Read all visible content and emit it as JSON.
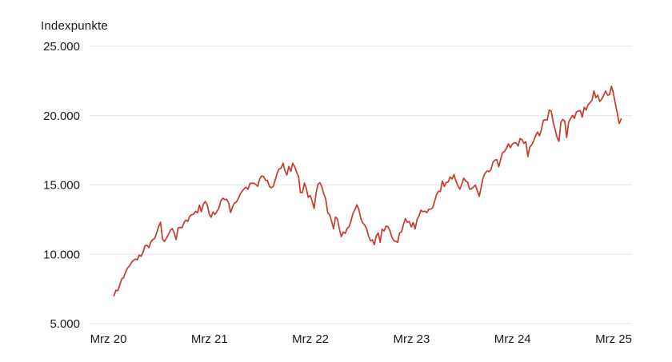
{
  "chart_data": {
    "type": "line",
    "ylabel": "Indexpunkte",
    "title": "",
    "legend": "none",
    "grid": "horizontal-only",
    "colors": {
      "line": "#c93a28",
      "grid": "#e7e7e7",
      "text": "#1a1a1a",
      "background": "#ffffff"
    },
    "x_axis": {
      "tick_labels": [
        "Mrz 20",
        "Mrz 21",
        "Mrz 22",
        "Mrz 23",
        "Mrz 24",
        "Mrz 25"
      ],
      "tick_positions_years": [
        0,
        1,
        2,
        3,
        4,
        5
      ],
      "range_years": [
        -0.186,
        5.182
      ]
    },
    "y_axis": {
      "tick_labels": [
        "25.000",
        "20.000",
        "15.000",
        "10.000",
        "5.000"
      ],
      "tick_values": [
        25000,
        20000,
        15000,
        10000,
        5000
      ],
      "range": [
        5000,
        25000
      ]
    },
    "series": [
      {
        "name": "Indexpunkte",
        "t_start_years": 0.055,
        "t_step_years": 0.019231,
        "values": [
          7006,
          7407,
          7373,
          7787,
          8233,
          8315,
          8718,
          9019,
          9152,
          9413,
          9555,
          9663,
          9589,
          9946,
          9849,
          10156,
          10618,
          10645,
          10483,
          10906,
          11055,
          11139,
          11555,
          11996,
          12310,
          11087,
          10936,
          11151,
          11418,
          11726,
          11852,
          11548,
          11052,
          11890,
          11937,
          11906,
          12268,
          12464,
          12375,
          12738,
          12850,
          12888,
          13106,
          12998,
          13543,
          13070,
          13604,
          13807,
          13580,
          12909,
          12668,
          13053,
          12867,
          13091,
          13330,
          13845,
          14041,
          13941,
          13962,
          13719,
          13007,
          13411,
          13687,
          13770,
          14020,
          14345,
          14550,
          14727,
          14840,
          14684,
          15112,
          15108,
          15129,
          15030,
          14900,
          15432,
          15652,
          15602,
          15334,
          15329,
          14892,
          14791,
          14897,
          15355,
          15850,
          16145,
          16199,
          16573,
          16025,
          15712,
          16332,
          15980,
          16567,
          16320,
          15905,
          15611,
          14438,
          14454,
          15139,
          14746,
          14106,
          14238,
          13838,
          13301,
          14420,
          15050,
          15159,
          14861,
          14327,
          13998,
          13004,
          12851,
          12388,
          11835,
          12681,
          12548,
          11832,
          11265,
          11608,
          11504,
          11860,
          11983,
          12396,
          12947,
          13207,
          13566,
          13243,
          12606,
          12272,
          12112,
          11861,
          11311,
          10971,
          11039,
          10692,
          11310,
          11546,
          10857,
          11817,
          11677,
          12030,
          11994,
          11704,
          11244,
          10985,
          10940,
          10862,
          11541,
          11619,
          12166,
          12573,
          12308,
          12358,
          11969,
          12290,
          11830,
          12520,
          12767,
          13181,
          13068,
          13109,
          13000,
          13245,
          13256,
          13340,
          13803,
          14298,
          14547,
          14528,
          15284,
          14891,
          15179,
          15209,
          15565,
          15426,
          15750,
          15274,
          14945,
          14694,
          15048,
          15491,
          15280,
          15202,
          14702,
          14715,
          14838,
          14995,
          14560,
          14180,
          14840,
          15529,
          15837,
          16010,
          15959,
          16085,
          16623,
          16777,
          16825,
          16306,
          16833,
          17314,
          17421,
          17642,
          17962,
          17686,
          17937,
          18043,
          18018,
          17808,
          18339,
          18254,
          18003,
          18106,
          17037,
          17718,
          17890,
          18161,
          18546,
          18808,
          18536,
          19000,
          19660,
          19700,
          19682,
          20392,
          20331,
          19523,
          19024,
          18441,
          18133,
          19509,
          19721,
          19575,
          18421,
          19514,
          19791,
          20009,
          19800,
          20271,
          20324,
          20352,
          19890,
          20600,
          20394,
          20776,
          20930,
          21100,
          21780,
          21289,
          21473,
          21012,
          21180,
          21441,
          21774,
          21478,
          21491,
          22114,
          21614,
          20884,
          20200,
          19430,
          19753
        ]
      }
    ]
  }
}
